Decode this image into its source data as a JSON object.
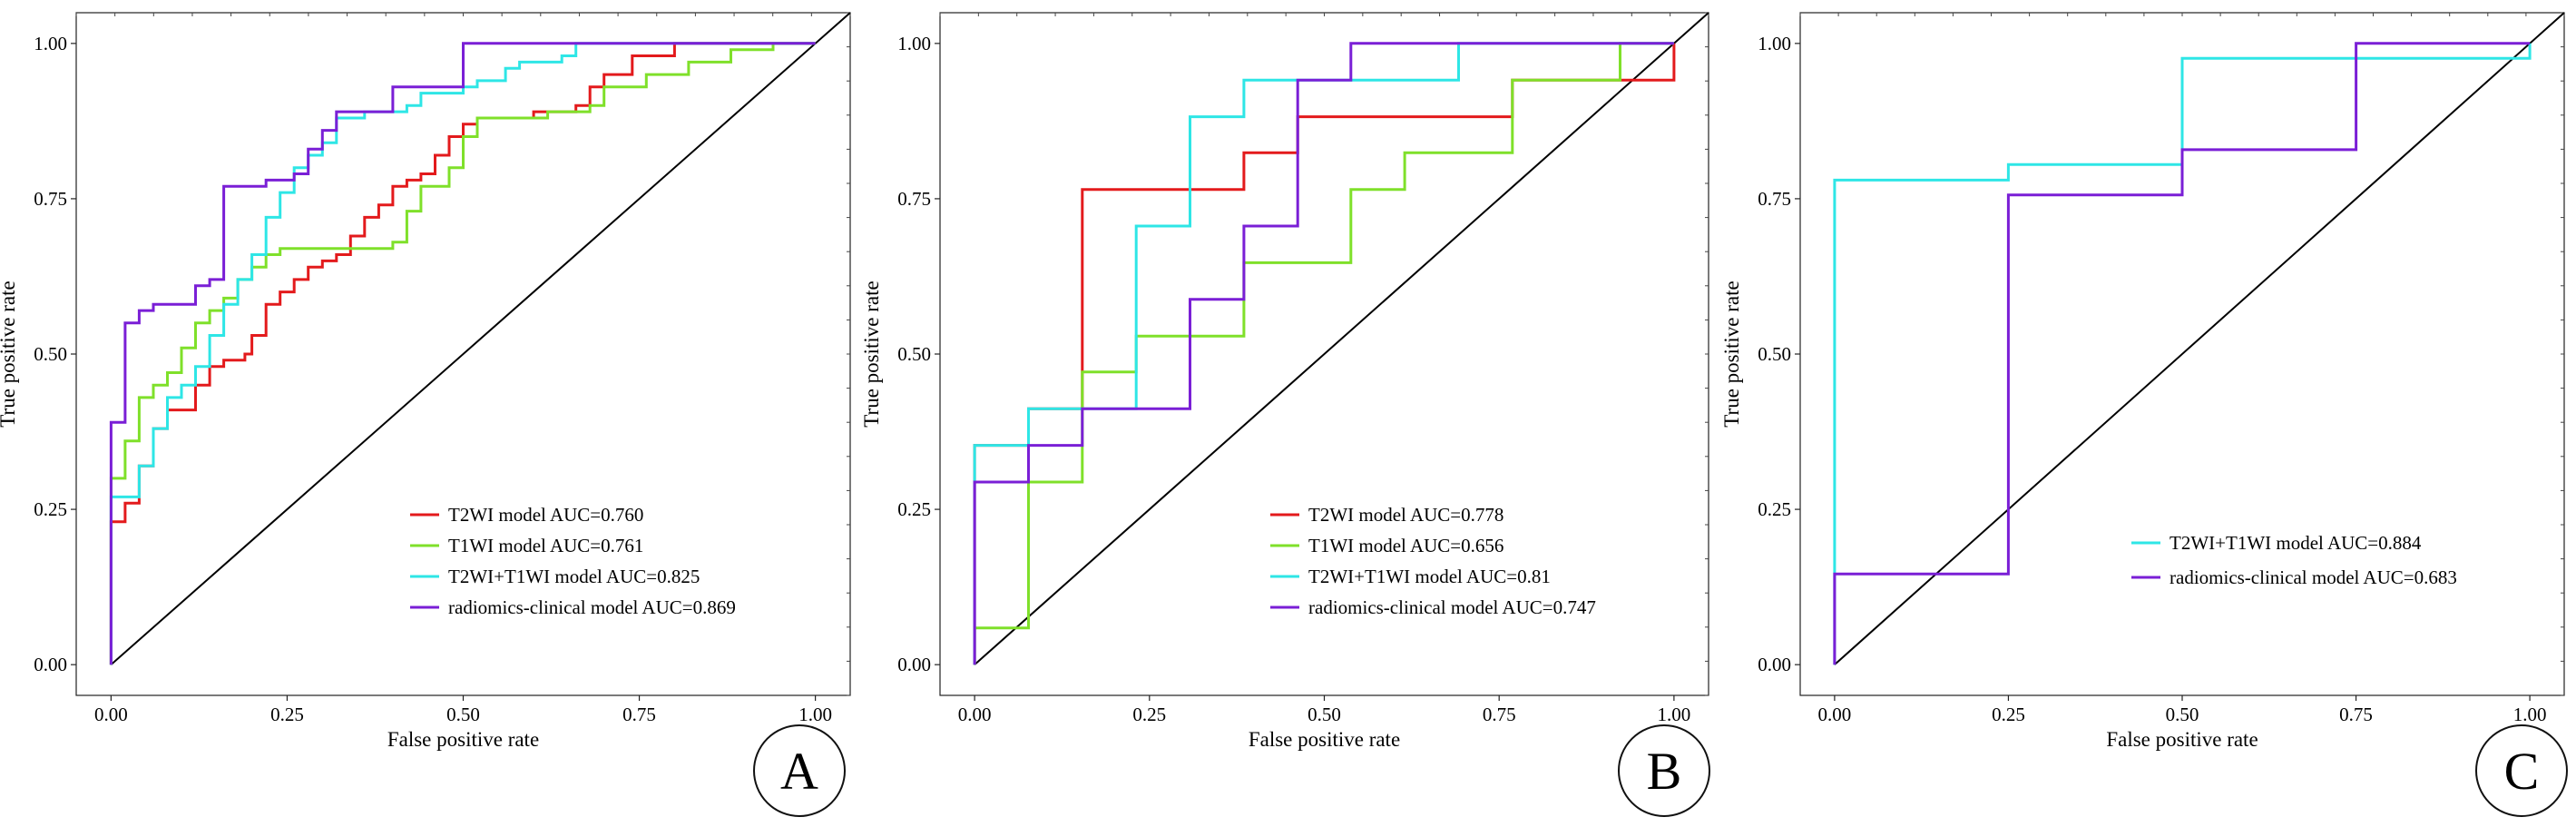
{
  "colors": {
    "T2WI": "#e31a1c",
    "T1WI": "#7fe02a",
    "combined": "#2ee6e6",
    "radiomics": "#7a1fd6",
    "diagonal": "#000000"
  },
  "chart_data": [
    {
      "type": "line",
      "panel_label": "A",
      "xlabel": "False positive rate",
      "ylabel": "True positive rate",
      "xlim": [
        0,
        1
      ],
      "ylim": [
        0,
        1
      ],
      "xticks": [
        "0.00",
        "0.25",
        "0.50",
        "0.75",
        "1.00"
      ],
      "yticks": [
        "0.00",
        "0.25",
        "0.50",
        "0.75",
        "1.00"
      ],
      "legend_position": "bottom-right",
      "series": [
        {
          "name": "T2WI model AUC=0.760",
          "color_key": "T2WI",
          "x": [
            0,
            0,
            0.02,
            0.02,
            0.04,
            0.04,
            0.06,
            0.06,
            0.08,
            0.08,
            0.12,
            0.12,
            0.14,
            0.14,
            0.16,
            0.16,
            0.19,
            0.19,
            0.2,
            0.2,
            0.22,
            0.22,
            0.24,
            0.24,
            0.26,
            0.26,
            0.28,
            0.28,
            0.3,
            0.3,
            0.32,
            0.32,
            0.34,
            0.34,
            0.36,
            0.36,
            0.38,
            0.38,
            0.4,
            0.4,
            0.42,
            0.42,
            0.44,
            0.44,
            0.46,
            0.46,
            0.48,
            0.48,
            0.5,
            0.5,
            0.52,
            0.52,
            0.54,
            0.54,
            0.6,
            0.6,
            0.66,
            0.66,
            0.68,
            0.68,
            0.7,
            0.7,
            0.74,
            0.74,
            0.78,
            0.78,
            0.8,
            0.8,
            0.84,
            0.84,
            1.0
          ],
          "y": [
            0,
            0.23,
            0.23,
            0.26,
            0.26,
            0.32,
            0.32,
            0.38,
            0.38,
            0.41,
            0.41,
            0.45,
            0.45,
            0.48,
            0.48,
            0.49,
            0.49,
            0.5,
            0.5,
            0.53,
            0.53,
            0.58,
            0.58,
            0.6,
            0.6,
            0.62,
            0.62,
            0.64,
            0.64,
            0.65,
            0.65,
            0.66,
            0.66,
            0.69,
            0.69,
            0.72,
            0.72,
            0.74,
            0.74,
            0.77,
            0.77,
            0.78,
            0.78,
            0.79,
            0.79,
            0.82,
            0.82,
            0.85,
            0.85,
            0.87,
            0.87,
            0.88,
            0.88,
            0.88,
            0.88,
            0.89,
            0.89,
            0.9,
            0.9,
            0.93,
            0.93,
            0.95,
            0.95,
            0.98,
            0.98,
            0.98,
            0.98,
            1.0,
            1.0,
            1.0,
            1.0
          ]
        },
        {
          "name": "T1WI model AUC=0.761",
          "color_key": "T1WI",
          "x": [
            0,
            0,
            0.02,
            0.02,
            0.04,
            0.04,
            0.06,
            0.06,
            0.08,
            0.08,
            0.1,
            0.1,
            0.12,
            0.12,
            0.14,
            0.14,
            0.16,
            0.16,
            0.18,
            0.18,
            0.2,
            0.2,
            0.22,
            0.22,
            0.24,
            0.24,
            0.4,
            0.4,
            0.42,
            0.42,
            0.44,
            0.44,
            0.48,
            0.48,
            0.5,
            0.5,
            0.52,
            0.52,
            0.62,
            0.62,
            0.68,
            0.68,
            0.7,
            0.7,
            0.76,
            0.76,
            0.82,
            0.82,
            0.88,
            0.88,
            0.94,
            0.94,
            1.0
          ],
          "y": [
            0,
            0.3,
            0.3,
            0.36,
            0.36,
            0.43,
            0.43,
            0.45,
            0.45,
            0.47,
            0.47,
            0.51,
            0.51,
            0.55,
            0.55,
            0.57,
            0.57,
            0.59,
            0.59,
            0.62,
            0.62,
            0.64,
            0.64,
            0.66,
            0.66,
            0.67,
            0.67,
            0.68,
            0.68,
            0.73,
            0.73,
            0.77,
            0.77,
            0.8,
            0.8,
            0.85,
            0.85,
            0.88,
            0.88,
            0.89,
            0.89,
            0.9,
            0.9,
            0.93,
            0.93,
            0.95,
            0.95,
            0.97,
            0.97,
            0.99,
            0.99,
            1.0,
            1.0
          ]
        },
        {
          "name": "T2WI+T1WI model AUC=0.825",
          "color_key": "combined",
          "x": [
            0,
            0,
            0.04,
            0.04,
            0.06,
            0.06,
            0.08,
            0.08,
            0.1,
            0.1,
            0.12,
            0.12,
            0.14,
            0.14,
            0.16,
            0.16,
            0.18,
            0.18,
            0.2,
            0.2,
            0.22,
            0.22,
            0.24,
            0.24,
            0.26,
            0.26,
            0.28,
            0.28,
            0.3,
            0.3,
            0.32,
            0.32,
            0.36,
            0.36,
            0.42,
            0.42,
            0.44,
            0.44,
            0.5,
            0.5,
            0.52,
            0.52,
            0.56,
            0.56,
            0.58,
            0.58,
            0.64,
            0.64,
            0.66,
            0.66,
            0.8,
            0.8,
            0.88,
            0.88,
            1.0
          ],
          "y": [
            0,
            0.27,
            0.27,
            0.32,
            0.32,
            0.38,
            0.38,
            0.43,
            0.43,
            0.45,
            0.45,
            0.48,
            0.48,
            0.53,
            0.53,
            0.58,
            0.58,
            0.62,
            0.62,
            0.66,
            0.66,
            0.72,
            0.72,
            0.76,
            0.76,
            0.8,
            0.8,
            0.82,
            0.82,
            0.84,
            0.84,
            0.88,
            0.88,
            0.89,
            0.89,
            0.9,
            0.9,
            0.92,
            0.92,
            0.93,
            0.93,
            0.94,
            0.94,
            0.96,
            0.96,
            0.97,
            0.97,
            0.98,
            0.98,
            1.0,
            1.0,
            1.0,
            1.0,
            1.0,
            1.0
          ]
        },
        {
          "name": "radiomics-clinical model AUC=0.869",
          "color_key": "radiomics",
          "x": [
            0,
            0,
            0.02,
            0.02,
            0.04,
            0.04,
            0.06,
            0.06,
            0.12,
            0.12,
            0.14,
            0.14,
            0.16,
            0.16,
            0.22,
            0.22,
            0.26,
            0.26,
            0.28,
            0.28,
            0.3,
            0.3,
            0.32,
            0.32,
            0.4,
            0.4,
            0.5,
            0.5,
            1.0
          ],
          "y": [
            0,
            0.39,
            0.39,
            0.55,
            0.55,
            0.57,
            0.57,
            0.58,
            0.58,
            0.61,
            0.61,
            0.62,
            0.62,
            0.77,
            0.77,
            0.78,
            0.78,
            0.79,
            0.79,
            0.83,
            0.83,
            0.86,
            0.86,
            0.89,
            0.89,
            0.93,
            0.93,
            1.0,
            1.0
          ]
        }
      ]
    },
    {
      "type": "line",
      "panel_label": "B",
      "xlabel": "False positive rate",
      "ylabel": "True positive rate",
      "xlim": [
        0,
        1
      ],
      "ylim": [
        0,
        1
      ],
      "xticks": [
        "0.00",
        "0.25",
        "0.50",
        "0.75",
        "1.00"
      ],
      "yticks": [
        "0.00",
        "0.25",
        "0.50",
        "0.75",
        "1.00"
      ],
      "legend_position": "bottom-right",
      "series": [
        {
          "name": "T2WI model AUC=0.778",
          "color_key": "T2WI",
          "x": [
            0,
            0,
            0.077,
            0.077,
            0.154,
            0.154,
            0.385,
            0.385,
            0.462,
            0.462,
            0.769,
            0.769,
            0.923,
            0.923,
            1.0,
            1.0
          ],
          "y": [
            0,
            0.353,
            0.353,
            0.412,
            0.412,
            0.765,
            0.765,
            0.824,
            0.824,
            0.882,
            0.882,
            0.941,
            0.941,
            0.941,
            0.941,
            1.0
          ]
        },
        {
          "name": "T1WI model AUC=0.656",
          "color_key": "T1WI",
          "x": [
            0,
            0,
            0.077,
            0.077,
            0.154,
            0.154,
            0.231,
            0.231,
            0.385,
            0.385,
            0.538,
            0.538,
            0.615,
            0.615,
            0.769,
            0.769,
            0.923,
            0.923,
            1.0
          ],
          "y": [
            0,
            0.059,
            0.059,
            0.294,
            0.294,
            0.471,
            0.471,
            0.529,
            0.529,
            0.647,
            0.647,
            0.765,
            0.765,
            0.824,
            0.824,
            0.941,
            0.941,
            1.0,
            1.0
          ]
        },
        {
          "name": "T2WI+T1WI model AUC=0.81",
          "color_key": "combined",
          "x": [
            0,
            0,
            0.077,
            0.077,
            0.231,
            0.231,
            0.308,
            0.308,
            0.385,
            0.385,
            0.692,
            0.692,
            1.0
          ],
          "y": [
            0,
            0.353,
            0.353,
            0.412,
            0.412,
            0.706,
            0.706,
            0.882,
            0.882,
            0.941,
            0.941,
            1.0,
            1.0
          ]
        },
        {
          "name": "radiomics-clinical model AUC=0.747",
          "color_key": "radiomics",
          "x": [
            0,
            0,
            0.077,
            0.077,
            0.154,
            0.154,
            0.308,
            0.308,
            0.385,
            0.385,
            0.462,
            0.462,
            0.538,
            0.538,
            1.0
          ],
          "y": [
            0,
            0.294,
            0.294,
            0.353,
            0.353,
            0.412,
            0.412,
            0.588,
            0.588,
            0.706,
            0.706,
            0.941,
            0.941,
            1.0,
            1.0
          ]
        }
      ]
    },
    {
      "type": "line",
      "panel_label": "C",
      "xlabel": "False positive rate",
      "ylabel": "True positive rate",
      "xlim": [
        0,
        1
      ],
      "ylim": [
        0,
        1
      ],
      "xticks": [
        "0.00",
        "0.25",
        "0.50",
        "0.75",
        "1.00"
      ],
      "yticks": [
        "0.00",
        "0.25",
        "0.50",
        "0.75",
        "1.00"
      ],
      "legend_position": "bottom-right",
      "series": [
        {
          "name": "T2WI+T1WI model AUC=0.884",
          "color_key": "combined",
          "x": [
            0,
            0,
            0.25,
            0.25,
            0.5,
            0.5,
            1.0,
            1.0
          ],
          "y": [
            0,
            0.78,
            0.78,
            0.805,
            0.805,
            0.976,
            0.976,
            1.0
          ]
        },
        {
          "name": "radiomics-clinical model AUC=0.683",
          "color_key": "radiomics",
          "x": [
            0,
            0,
            0.25,
            0.25,
            0.5,
            0.5,
            0.75,
            0.75,
            1.0
          ],
          "y": [
            0,
            0.146,
            0.146,
            0.756,
            0.756,
            0.829,
            0.829,
            1.0,
            1.0
          ]
        }
      ]
    }
  ]
}
